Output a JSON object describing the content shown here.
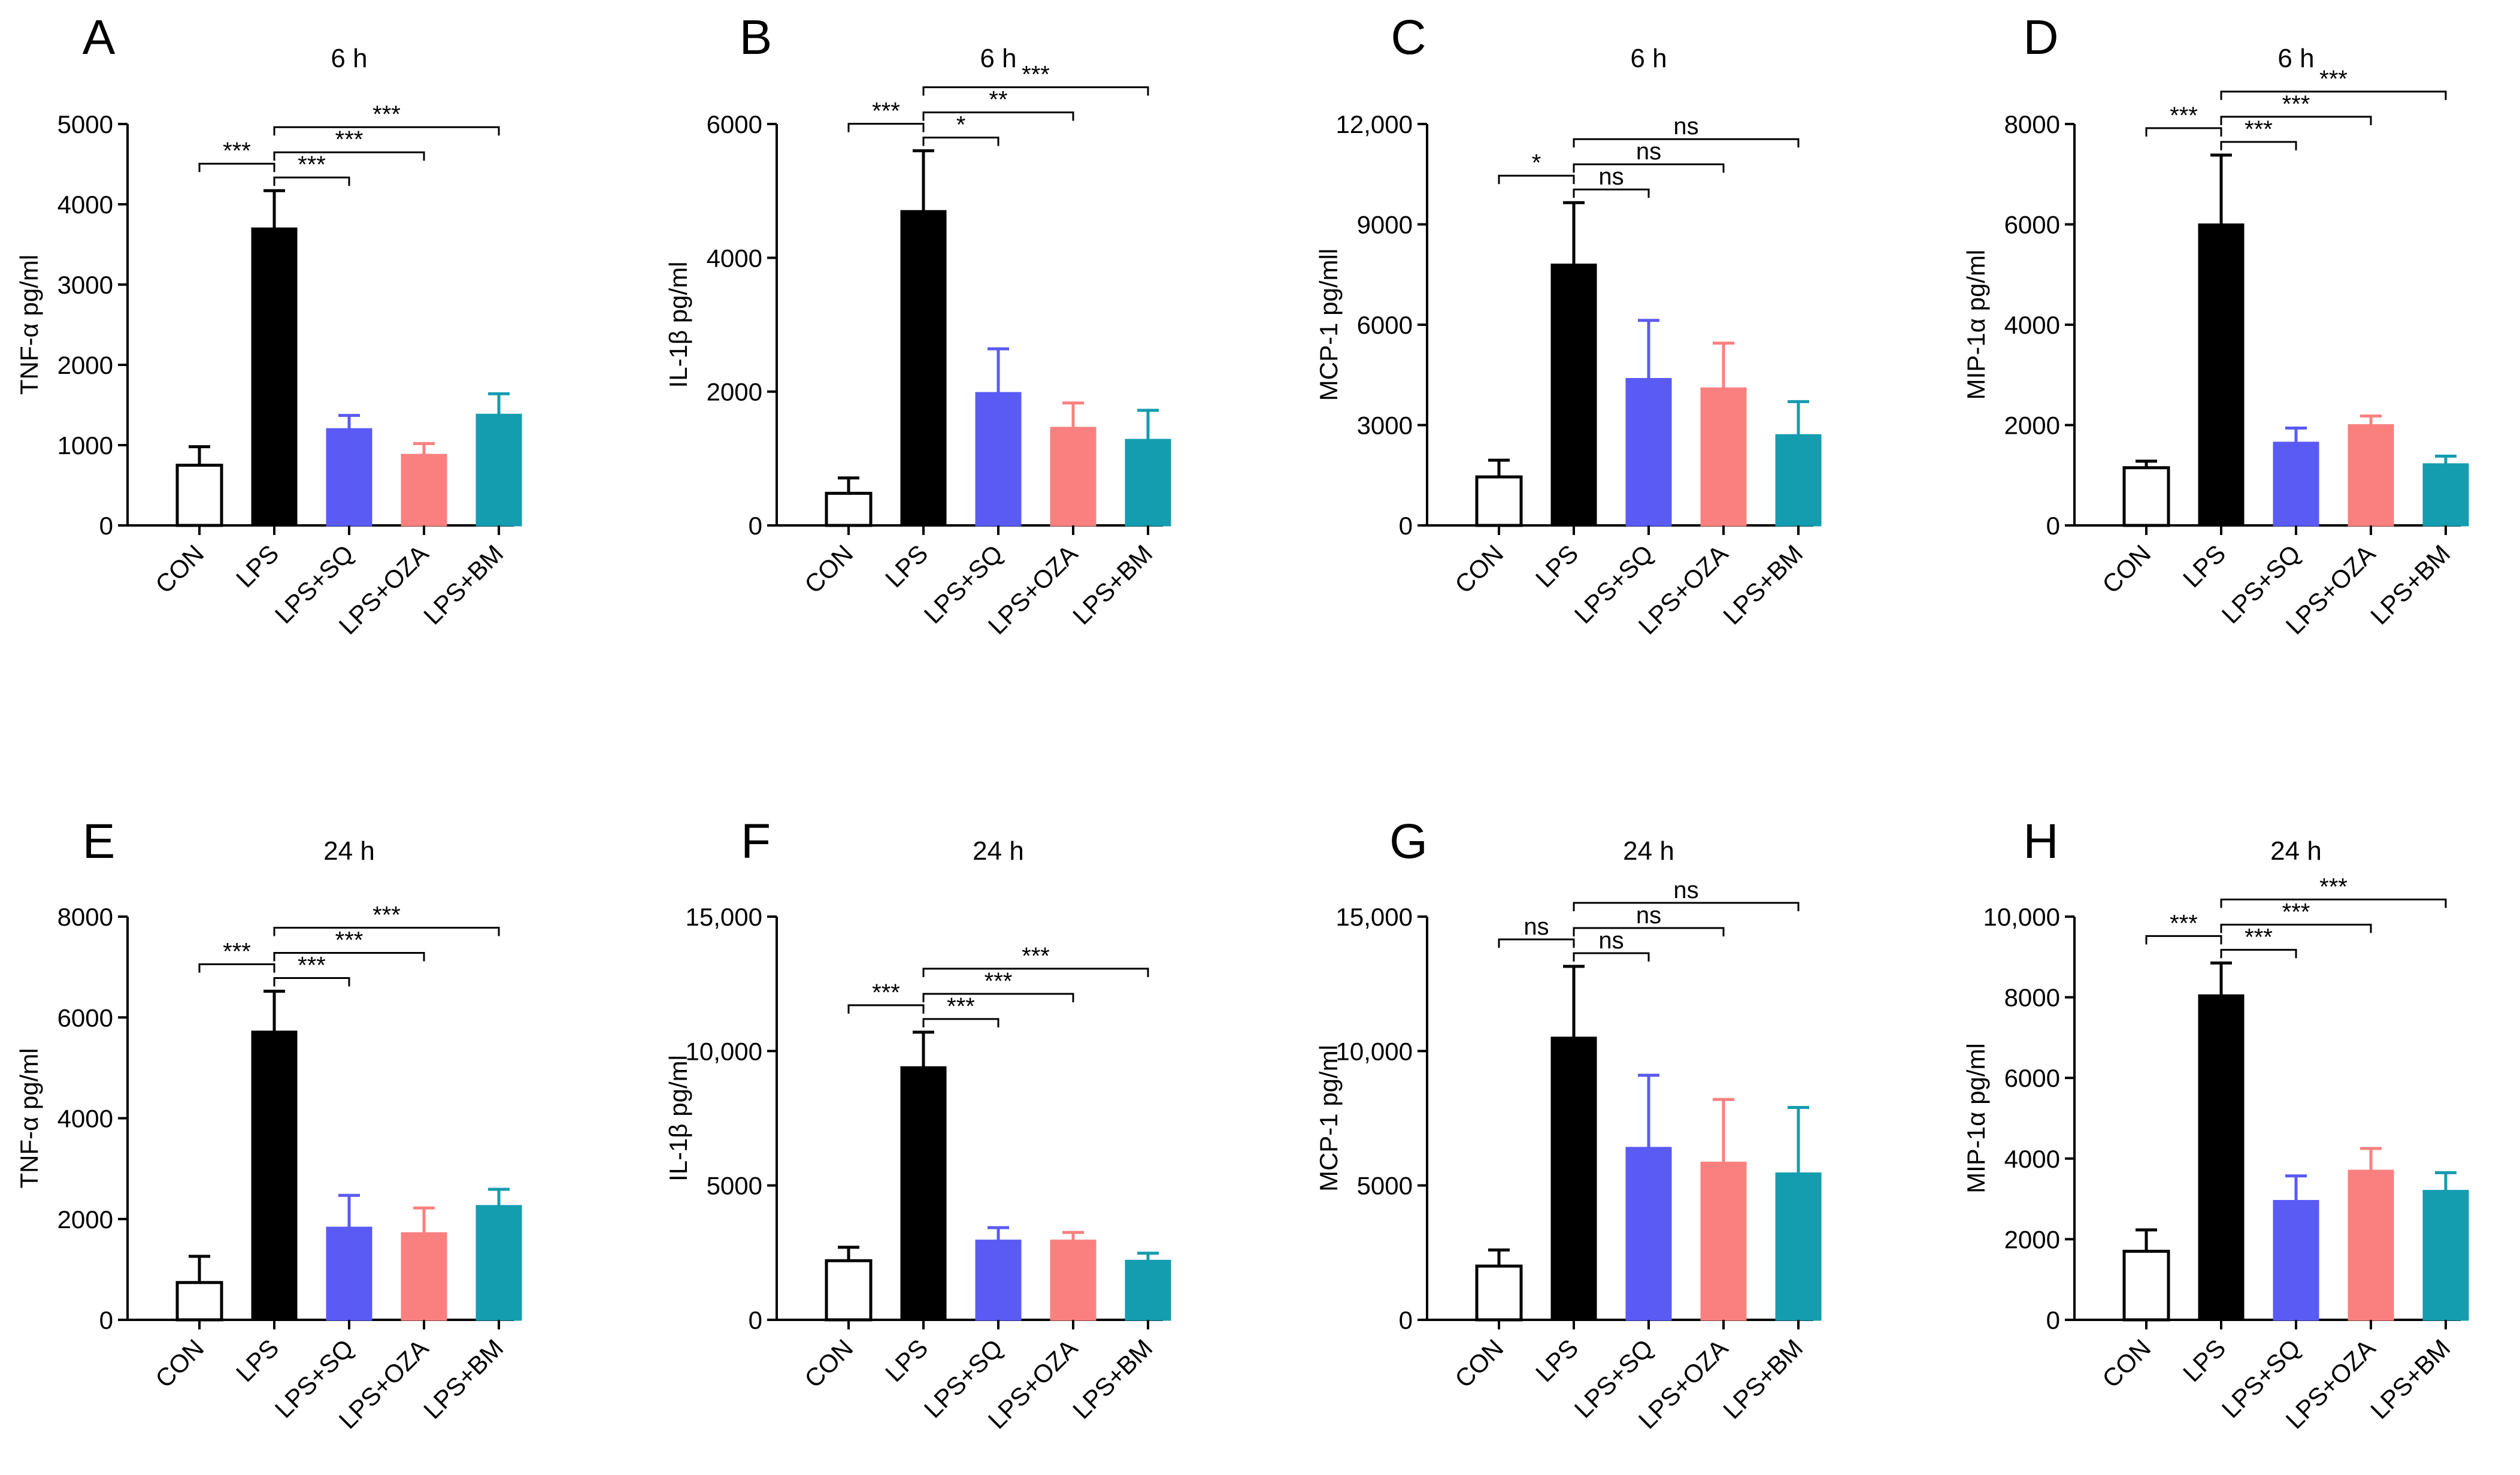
{
  "figure": {
    "categories": [
      "CON",
      "LPS",
      "LPS+SQ",
      "LPS+OZA",
      "LPS+BM"
    ],
    "bar_fills": [
      "#ffffff",
      "#000000",
      "#5a5af5",
      "#fa8080",
      "#149caf"
    ],
    "bar_strokes": [
      "#000000",
      "#000000",
      "#5a5af5",
      "#fa8080",
      "#149caf"
    ]
  },
  "chart_data": [
    {
      "panel": "A",
      "type": "bar",
      "title": "6 h",
      "ylabel": "TNF-α pg/ml",
      "categories": [
        "CON",
        "LPS",
        "LPS+SQ",
        "LPS+OZA",
        "LPS+BM"
      ],
      "values": [
        750,
        3700,
        1200,
        880,
        1380
      ],
      "errors": [
        230,
        470,
        170,
        140,
        260
      ],
      "ylim": [
        0,
        5000
      ],
      "yticks": [
        0,
        1000,
        2000,
        3000,
        4000,
        5000
      ],
      "ytick_labels": [
        "0",
        "1000",
        "2000",
        "3000",
        "4000",
        "5000"
      ],
      "comparisons": [
        {
          "from": 0,
          "to": 1,
          "label": "***"
        },
        {
          "from": 1,
          "to": 2,
          "label": "***"
        },
        {
          "from": 1,
          "to": 3,
          "label": "***"
        },
        {
          "from": 1,
          "to": 4,
          "label": "***"
        }
      ]
    },
    {
      "panel": "B",
      "type": "bar",
      "title": "6 h",
      "ylabel": "IL-1β pg/ml",
      "categories": [
        "CON",
        "LPS",
        "LPS+SQ",
        "LPS+OZA",
        "LPS+BM"
      ],
      "values": [
        480,
        4700,
        1980,
        1460,
        1280
      ],
      "errors": [
        230,
        900,
        660,
        370,
        440
      ],
      "ylim": [
        0,
        6000
      ],
      "yticks": [
        0,
        2000,
        4000,
        6000
      ],
      "ytick_labels": [
        "0",
        "2000",
        "4000",
        "6000"
      ],
      "comparisons": [
        {
          "from": 0,
          "to": 1,
          "label": "***"
        },
        {
          "from": 1,
          "to": 2,
          "label": "*"
        },
        {
          "from": 1,
          "to": 3,
          "label": "**"
        },
        {
          "from": 1,
          "to": 4,
          "label": "***"
        }
      ]
    },
    {
      "panel": "C",
      "type": "bar",
      "title": "6 h",
      "ylabel": "MCP-1 pg/mll",
      "categories": [
        "CON",
        "LPS",
        "LPS+SQ",
        "LPS+OZA",
        "LPS+BM"
      ],
      "values": [
        1450,
        7800,
        4380,
        4100,
        2700
      ],
      "errors": [
        500,
        1850,
        1750,
        1350,
        1000
      ],
      "ylim": [
        0,
        12000
      ],
      "yticks": [
        0,
        3000,
        6000,
        9000,
        12000
      ],
      "ytick_labels": [
        "0",
        "3000",
        "6000",
        "9000",
        "12,000"
      ],
      "comparisons": [
        {
          "from": 0,
          "to": 1,
          "label": "*"
        },
        {
          "from": 1,
          "to": 2,
          "label": "ns"
        },
        {
          "from": 1,
          "to": 3,
          "label": "ns"
        },
        {
          "from": 1,
          "to": 4,
          "label": "ns"
        }
      ]
    },
    {
      "panel": "D",
      "type": "bar",
      "title": "6 h",
      "ylabel": "MIP-1α pg/ml",
      "categories": [
        "CON",
        "LPS",
        "LPS+SQ",
        "LPS+OZA",
        "LPS+BM"
      ],
      "values": [
        1150,
        6000,
        1650,
        2000,
        1220
      ],
      "errors": [
        130,
        1380,
        290,
        180,
        160
      ],
      "ylim": [
        0,
        8000
      ],
      "yticks": [
        0,
        2000,
        4000,
        6000,
        8000
      ],
      "ytick_labels": [
        "0",
        "2000",
        "4000",
        "6000",
        "8000"
      ],
      "comparisons": [
        {
          "from": 0,
          "to": 1,
          "label": "***"
        },
        {
          "from": 1,
          "to": 2,
          "label": "***"
        },
        {
          "from": 1,
          "to": 3,
          "label": "***"
        },
        {
          "from": 1,
          "to": 4,
          "label": "***"
        }
      ]
    },
    {
      "panel": "E",
      "type": "bar",
      "title": "24 h",
      "ylabel": "TNF-α pg/ml",
      "categories": [
        "CON",
        "LPS",
        "LPS+SQ",
        "LPS+OZA",
        "LPS+BM"
      ],
      "values": [
        740,
        5720,
        1830,
        1720,
        2260
      ],
      "errors": [
        520,
        800,
        640,
        500,
        330
      ],
      "ylim": [
        0,
        8000
      ],
      "yticks": [
        0,
        2000,
        4000,
        6000,
        8000
      ],
      "ytick_labels": [
        "0",
        "2000",
        "4000",
        "6000",
        "8000"
      ],
      "comparisons": [
        {
          "from": 0,
          "to": 1,
          "label": "***"
        },
        {
          "from": 1,
          "to": 2,
          "label": "***"
        },
        {
          "from": 1,
          "to": 3,
          "label": "***"
        },
        {
          "from": 1,
          "to": 4,
          "label": "***"
        }
      ]
    },
    {
      "panel": "F",
      "type": "bar",
      "title": "24 h",
      "ylabel": "IL-1β pg/ml",
      "categories": [
        "CON",
        "LPS",
        "LPS+SQ",
        "LPS+OZA",
        "LPS+BM"
      ],
      "values": [
        2200,
        9400,
        2950,
        2950,
        2200
      ],
      "errors": [
        500,
        1300,
        480,
        300,
        280
      ],
      "ylim": [
        0,
        15000
      ],
      "yticks": [
        0,
        5000,
        10000,
        15000
      ],
      "ytick_labels": [
        "0",
        "5000",
        "10,000",
        "15,000"
      ],
      "comparisons": [
        {
          "from": 0,
          "to": 1,
          "label": "***"
        },
        {
          "from": 1,
          "to": 2,
          "label": "***"
        },
        {
          "from": 1,
          "to": 3,
          "label": "***"
        },
        {
          "from": 1,
          "to": 4,
          "label": "***"
        }
      ]
    },
    {
      "panel": "G",
      "type": "bar",
      "title": "24 h",
      "ylabel": "MCP-1 pg/ml",
      "categories": [
        "CON",
        "LPS",
        "LPS+SQ",
        "LPS+OZA",
        "LPS+BM"
      ],
      "values": [
        2000,
        10500,
        6400,
        5850,
        5450
      ],
      "errors": [
        600,
        2650,
        2700,
        2350,
        2450
      ],
      "ylim": [
        0,
        15000
      ],
      "yticks": [
        0,
        5000,
        10000,
        15000
      ],
      "ytick_labels": [
        "0",
        "5000",
        "10,000",
        "15,000"
      ],
      "comparisons": [
        {
          "from": 0,
          "to": 1,
          "label": "ns"
        },
        {
          "from": 1,
          "to": 2,
          "label": "ns"
        },
        {
          "from": 1,
          "to": 3,
          "label": "ns"
        },
        {
          "from": 1,
          "to": 4,
          "label": "ns"
        }
      ]
    },
    {
      "panel": "H",
      "type": "bar",
      "title": "24 h",
      "ylabel": "MIP-1α pg/ml",
      "categories": [
        "CON",
        "LPS",
        "LPS+SQ",
        "LPS+OZA",
        "LPS+BM"
      ],
      "values": [
        1700,
        8050,
        2950,
        3700,
        3200
      ],
      "errors": [
        530,
        800,
        620,
        550,
        450
      ],
      "ylim": [
        0,
        10000
      ],
      "yticks": [
        0,
        2000,
        4000,
        6000,
        8000,
        10000
      ],
      "ytick_labels": [
        "0",
        "2000",
        "4000",
        "6000",
        "8000",
        "10,000"
      ],
      "comparisons": [
        {
          "from": 0,
          "to": 1,
          "label": "***"
        },
        {
          "from": 1,
          "to": 2,
          "label": "***"
        },
        {
          "from": 1,
          "to": 3,
          "label": "***"
        },
        {
          "from": 1,
          "to": 4,
          "label": "***"
        }
      ]
    }
  ]
}
